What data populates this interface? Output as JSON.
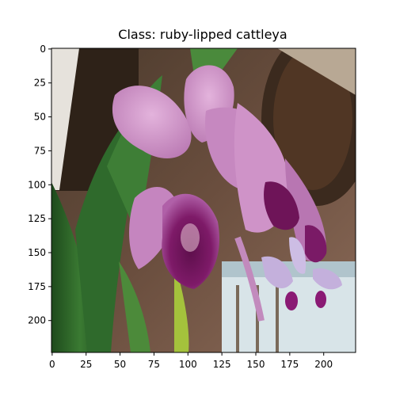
{
  "figure": {
    "title": "Class: ruby-lipped cattleya"
  },
  "axes": {
    "x_ticks": [
      "0",
      "25",
      "50",
      "75",
      "100",
      "125",
      "150",
      "175",
      "200"
    ],
    "y_ticks": [
      "0",
      "25",
      "50",
      "75",
      "100",
      "125",
      "150",
      "175",
      "200"
    ],
    "x_range": [
      0,
      224
    ],
    "y_range": [
      0,
      224
    ]
  },
  "image": {
    "subject": "pink cattleya orchid flowers with dark purple ruffled lips, green leaves, hanging basket and wooden structure in background",
    "colors": {
      "petal": "#c98ac4",
      "petal_light": "#dba8d6",
      "lip": "#7a1663",
      "leaf": "#2e6a2a",
      "leaf_light": "#5c9a3a",
      "background_dark": "#3a2a20",
      "wall": "#8a6a58",
      "sky": "#d8e4e8"
    }
  }
}
